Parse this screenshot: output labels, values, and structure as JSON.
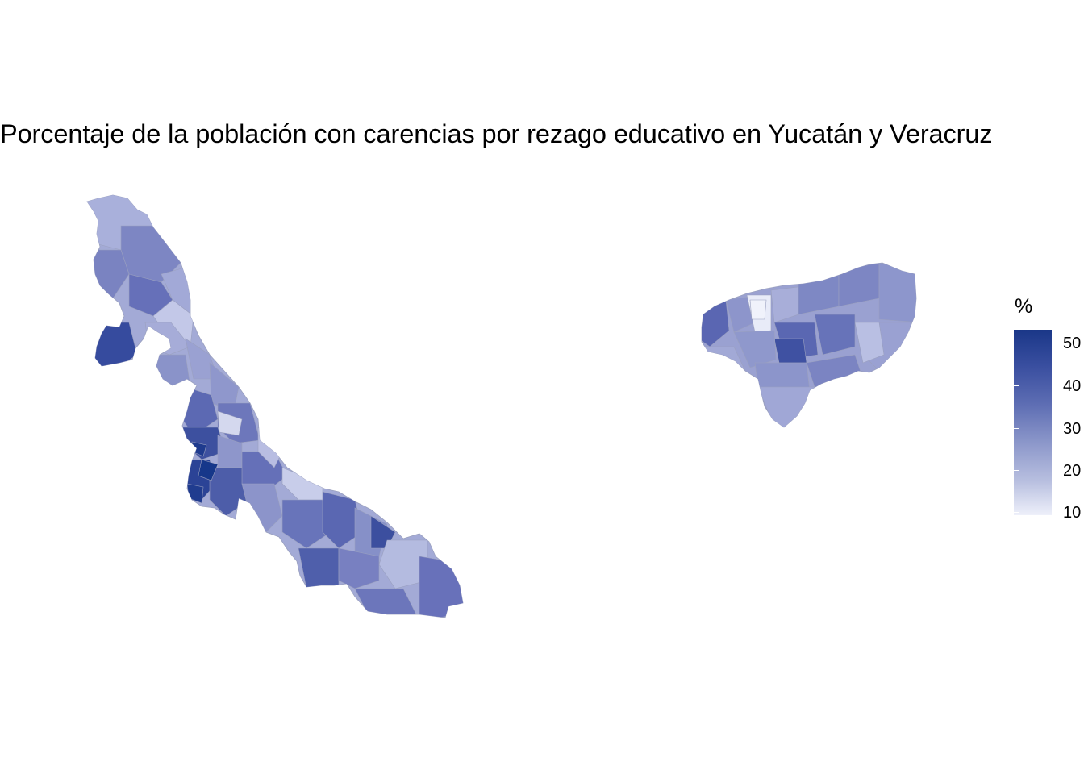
{
  "title": "Porcentaje de la población con carencias por rezago educativo en Yucatán y Veracruz",
  "legend": {
    "title": "%",
    "ticks": [
      "50",
      "40",
      "30",
      "20",
      "10"
    ],
    "range": [
      10,
      53
    ],
    "low_color": "#eef0fa",
    "high_color": "#1a3788"
  },
  "map": {
    "states": [
      "Veracruz",
      "Yucatán"
    ],
    "border_color": "#9a9fb8"
  }
}
